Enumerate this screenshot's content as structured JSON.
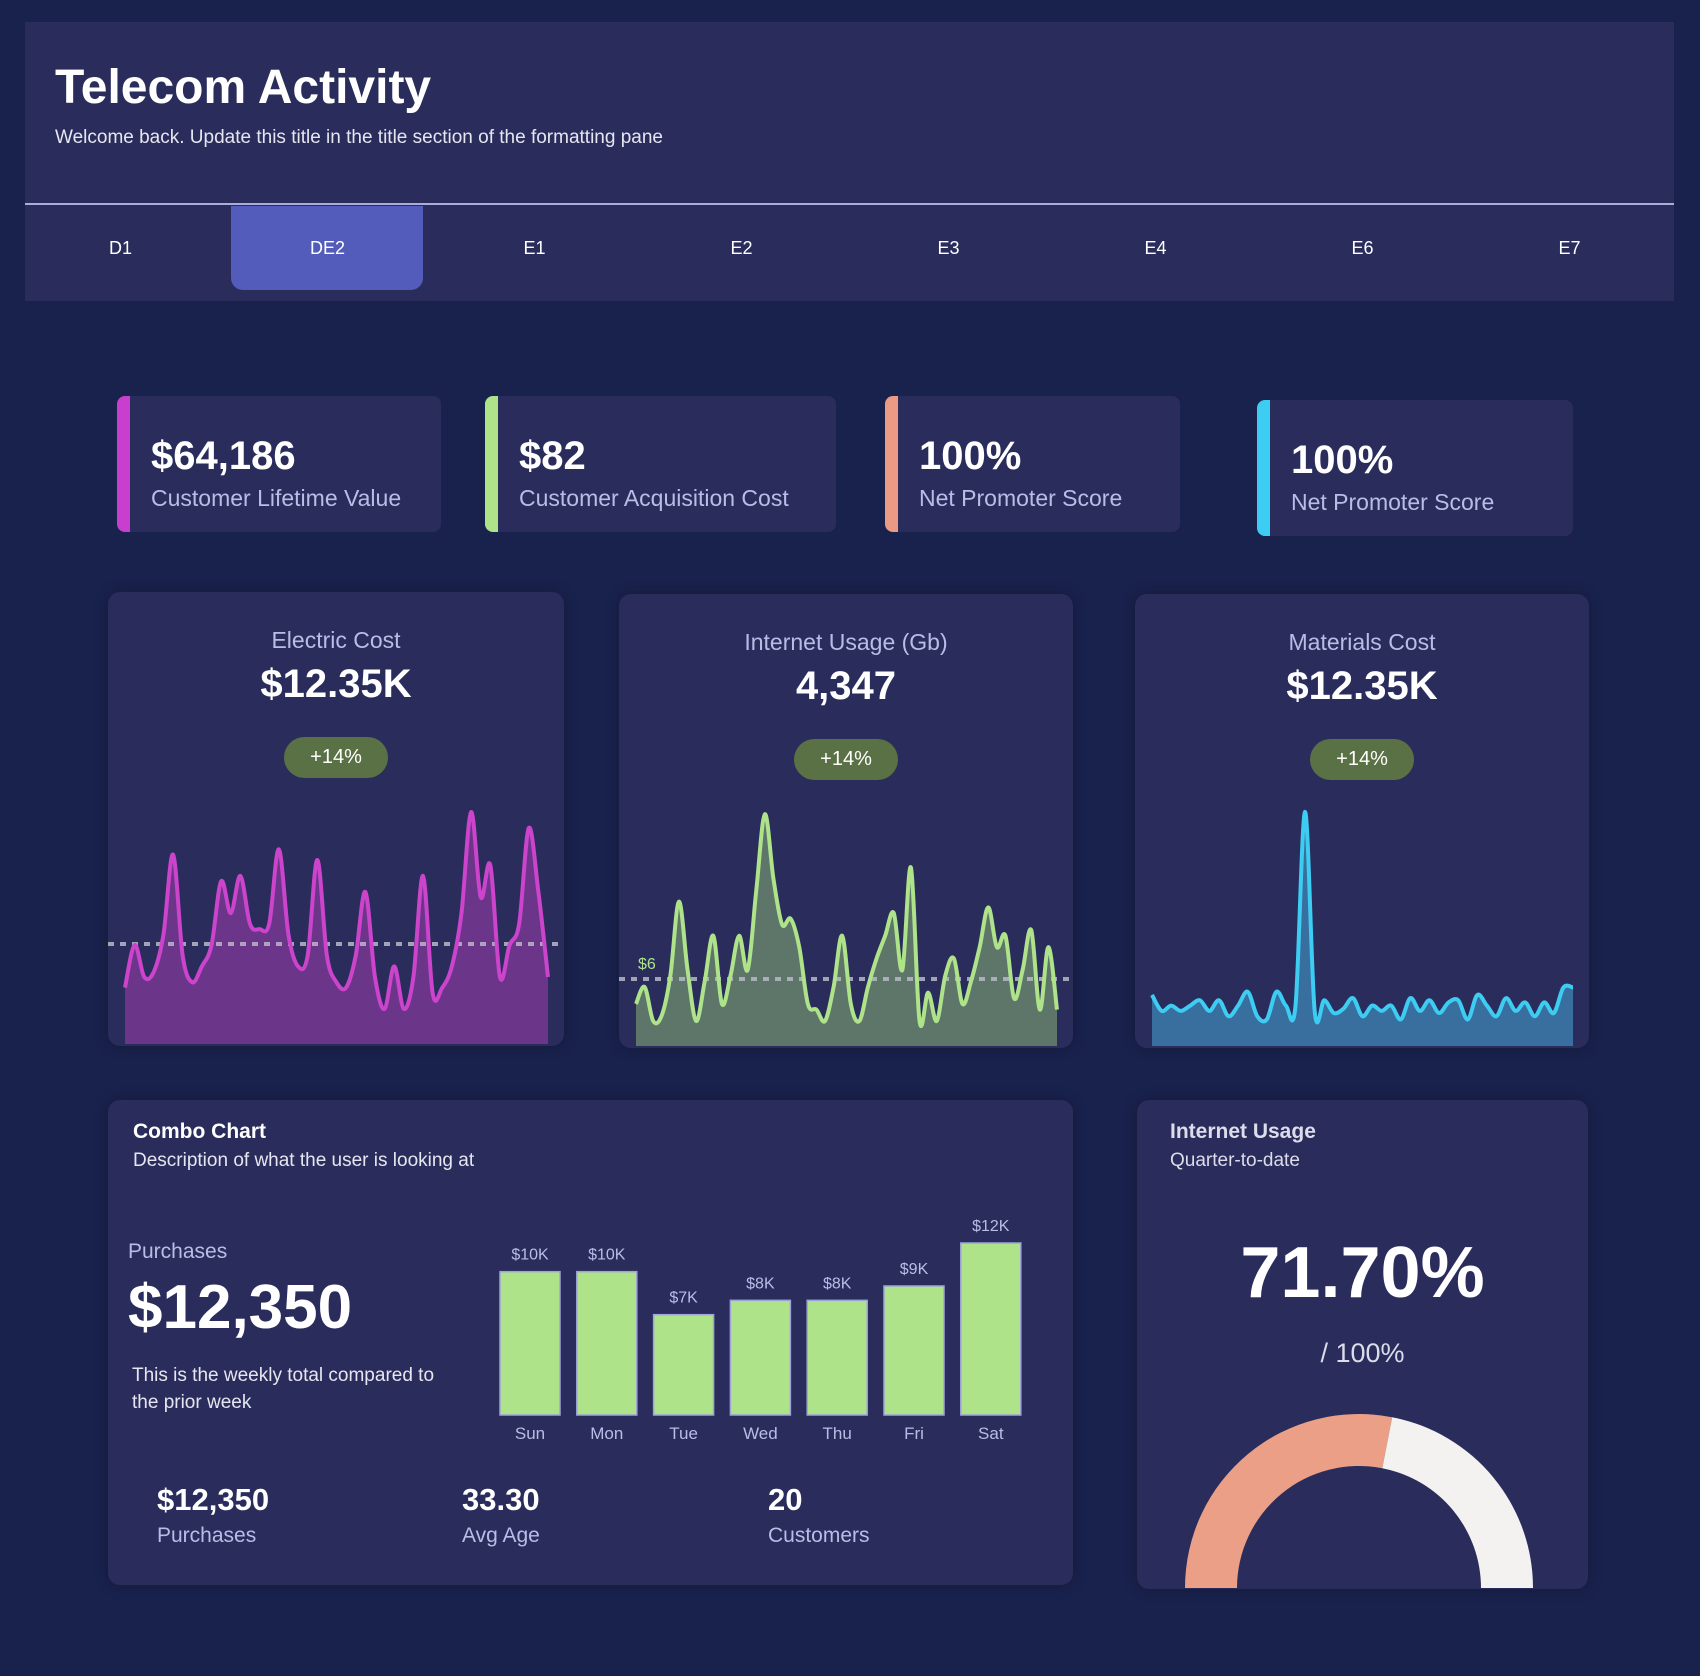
{
  "header": {
    "title": "Telecom Activity",
    "subtitle": "Welcome back. Update this title in the title section of the formatting pane",
    "tabs": [
      {
        "label": "D1",
        "active": false
      },
      {
        "label": "DE2",
        "active": true
      },
      {
        "label": "E1",
        "active": false
      },
      {
        "label": "E2",
        "active": false
      },
      {
        "label": "E3",
        "active": false
      },
      {
        "label": "E4",
        "active": false
      },
      {
        "label": "E6",
        "active": false
      },
      {
        "label": "E7",
        "active": false
      }
    ]
  },
  "kpis": [
    {
      "value": "$64,186",
      "label": "Customer Lifetime Value",
      "color": "#c83fcf"
    },
    {
      "value": "$82",
      "label": "Customer Acquisition Cost",
      "color": "#aee38a"
    },
    {
      "value": "100%",
      "label": "Net Promoter Score",
      "color": "#eb9b83"
    },
    {
      "value": "100%",
      "label": "Net Promoter Score",
      "color": "#3ecdf2"
    }
  ],
  "chart_data": [
    {
      "type": "area",
      "title": "Electric Cost",
      "value": "$12.35K",
      "change": "+14%",
      "line_color": "#cc44cc",
      "fill_color": "#6b3589",
      "reference": 94,
      "reference_label": "",
      "ylim": [
        0,
        235
      ],
      "values": [
        53,
        93,
        63,
        68,
        103,
        178,
        83,
        58,
        73,
        93,
        153,
        123,
        158,
        113,
        108,
        113,
        183,
        103,
        73,
        83,
        173,
        83,
        58,
        53,
        83,
        143,
        63,
        33,
        73,
        33,
        63,
        158,
        48,
        53,
        73,
        123,
        218,
        138,
        168,
        63,
        93,
        113,
        203,
        143,
        63
      ]
    },
    {
      "type": "area",
      "title": "Internet Usage (Gb)",
      "value": "4,347",
      "change": "+14%",
      "line_color": "#aee38a",
      "fill_color": "#5e7569",
      "reference": 59,
      "reference_label": "$6",
      "ylim": [
        0,
        220
      ],
      "values": [
        37,
        52,
        22,
        27,
        62,
        127,
        67,
        22,
        57,
        97,
        37,
        62,
        97,
        67,
        137,
        204,
        147,
        107,
        112,
        87,
        37,
        32,
        22,
        52,
        97,
        37,
        22,
        52,
        77,
        97,
        117,
        67,
        157,
        22,
        47,
        22,
        62,
        77,
        37,
        57,
        87,
        122,
        87,
        97,
        42,
        67,
        102,
        32,
        87,
        32
      ]
    },
    {
      "type": "area",
      "title": "Materials Cost",
      "value": "$12.35K",
      "change": "+14%",
      "line_color": "#3ecdf2",
      "fill_color": "#386f9e",
      "reference": null,
      "reference_label": "",
      "ylim": [
        0,
        235
      ],
      "values": [
        48,
        33,
        38,
        33,
        38,
        43,
        33,
        43,
        28,
        38,
        51,
        28,
        25,
        51,
        38,
        38,
        220,
        33,
        43,
        31,
        35,
        45,
        28,
        38,
        33,
        38,
        25,
        45,
        33,
        43,
        31,
        41,
        43,
        25,
        48,
        38,
        28,
        45,
        33,
        41,
        28,
        41,
        31,
        55,
        55
      ]
    },
    {
      "type": "bar",
      "title": "Combo Chart",
      "subtitle": "Description of what the user is looking at",
      "categories": [
        "Sun",
        "Mon",
        "Tue",
        "Wed",
        "Thu",
        "Fri",
        "Sat"
      ],
      "values": [
        10,
        10,
        7,
        8,
        8,
        9,
        12
      ],
      "data_labels": [
        "$10K",
        "$10K",
        "$7K",
        "$8K",
        "$8K",
        "$9K",
        "$12K"
      ],
      "ylim": [
        0,
        12
      ],
      "bar_color": "#aee38a"
    },
    {
      "type": "pie",
      "title": "Internet Usage",
      "subtitle": "Quarter-to-date",
      "value": 71.7,
      "max": 100,
      "value_label": "71.70%",
      "max_label": "/ 100%",
      "colors": {
        "value": "#eb9f87",
        "remainder": "#f3f2f1"
      }
    }
  ],
  "combo": {
    "purchases_label": "Purchases",
    "purchases_value": "$12,350",
    "description": "This is the weekly total compared to the prior week",
    "stats": [
      {
        "value": "$12,350",
        "label": "Purchases"
      },
      {
        "value": "33.30",
        "label": "Avg Age"
      },
      {
        "value": "20",
        "label": "Customers"
      }
    ]
  }
}
